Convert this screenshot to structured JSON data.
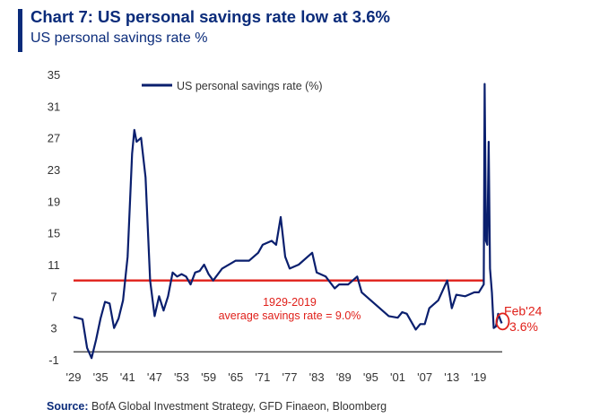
{
  "title": "Chart 7: US personal savings rate low at 3.6%",
  "subtitle": "US personal savings rate %",
  "source_label": "Source:",
  "source_text": "BofA Global Investment Strategy, GFD Finaeon, Bloomberg",
  "chart_data": {
    "type": "line",
    "title": "Chart 7: US personal savings rate low at 3.6%",
    "ylabel": "US personal savings rate %",
    "ylim": [
      -1,
      35
    ],
    "xlim": [
      1929,
      2024.2
    ],
    "y_ticks": [
      "35",
      "31",
      "27",
      "23",
      "19",
      "15",
      "11",
      "7",
      "3",
      "-1"
    ],
    "x_ticks": [
      "'29",
      "'35",
      "'41",
      "'47",
      "'53",
      "'59",
      "'65",
      "'71",
      "'77",
      "'83",
      "'89",
      "'95",
      "'01",
      "'07",
      "'13",
      "'19"
    ],
    "legend": {
      "position": "top-left",
      "entries": [
        "US personal savings rate (%)"
      ]
    },
    "grid": false,
    "colors": {
      "series": "#0a1f6e",
      "average": "#e0201a",
      "zero": "#1a1a1a"
    },
    "series": [
      {
        "name": "US personal savings rate (%)",
        "points": [
          [
            1929,
            4.4
          ],
          [
            1931,
            4.1
          ],
          [
            1932,
            0.5
          ],
          [
            1933,
            -0.8
          ],
          [
            1934,
            1.5
          ],
          [
            1935,
            4.2
          ],
          [
            1936,
            6.3
          ],
          [
            1937,
            6.1
          ],
          [
            1938,
            3.0
          ],
          [
            1939,
            4.2
          ],
          [
            1940,
            6.5
          ],
          [
            1941,
            12.0
          ],
          [
            1942,
            25.0
          ],
          [
            1942.5,
            28.0
          ],
          [
            1943,
            26.5
          ],
          [
            1944,
            27.0
          ],
          [
            1945,
            22.0
          ],
          [
            1946,
            9.0
          ],
          [
            1947,
            4.5
          ],
          [
            1948,
            7.0
          ],
          [
            1949,
            5.2
          ],
          [
            1950,
            7.0
          ],
          [
            1951,
            10.0
          ],
          [
            1952,
            9.5
          ],
          [
            1953,
            9.8
          ],
          [
            1954,
            9.5
          ],
          [
            1955,
            8.5
          ],
          [
            1956,
            10.0
          ],
          [
            1957,
            10.2
          ],
          [
            1958,
            11.0
          ],
          [
            1959,
            9.8
          ],
          [
            1960,
            9.0
          ],
          [
            1962,
            10.5
          ],
          [
            1965,
            11.5
          ],
          [
            1968,
            11.5
          ],
          [
            1970,
            12.5
          ],
          [
            1971,
            13.5
          ],
          [
            1973,
            14.0
          ],
          [
            1974,
            13.5
          ],
          [
            1975,
            17.0
          ],
          [
            1976,
            12.0
          ],
          [
            1977,
            10.5
          ],
          [
            1979,
            11.0
          ],
          [
            1981,
            12.0
          ],
          [
            1982,
            12.5
          ],
          [
            1983,
            10.0
          ],
          [
            1985,
            9.5
          ],
          [
            1987,
            8.0
          ],
          [
            1988,
            8.5
          ],
          [
            1989,
            8.5
          ],
          [
            1990,
            8.5
          ],
          [
            1992,
            9.5
          ],
          [
            1993,
            7.5
          ],
          [
            1995,
            6.5
          ],
          [
            1997,
            5.5
          ],
          [
            1999,
            4.5
          ],
          [
            2001,
            4.3
          ],
          [
            2002,
            5.0
          ],
          [
            2003,
            4.8
          ],
          [
            2005,
            2.8
          ],
          [
            2006,
            3.5
          ],
          [
            2007,
            3.5
          ],
          [
            2008,
            5.5
          ],
          [
            2009,
            6.0
          ],
          [
            2010,
            6.5
          ],
          [
            2012,
            9.0
          ],
          [
            2013,
            5.5
          ],
          [
            2014,
            7.2
          ],
          [
            2016,
            7.0
          ],
          [
            2018,
            7.5
          ],
          [
            2019,
            7.5
          ],
          [
            2020.1,
            8.5
          ],
          [
            2020.3,
            33.8
          ],
          [
            2020.6,
            14.0
          ],
          [
            2020.9,
            13.5
          ],
          [
            2021.2,
            26.5
          ],
          [
            2021.5,
            10.5
          ],
          [
            2021.9,
            7.5
          ],
          [
            2022.3,
            3.0
          ],
          [
            2022.8,
            3.2
          ],
          [
            2023.3,
            4.8
          ],
          [
            2023.8,
            4.0
          ],
          [
            2024.1,
            3.6
          ]
        ]
      },
      {
        "name": "1929-2019 average savings rate",
        "type": "hline",
        "y": 9.0,
        "x_range": [
          1929,
          2020.3
        ]
      }
    ],
    "annotations": [
      {
        "text": "1929-2019",
        "anchor": [
          1977,
          5.8
        ]
      },
      {
        "text": "average savings rate = 9.0%",
        "anchor": [
          1977,
          4.1
        ]
      },
      {
        "text": "Feb'24",
        "anchor": [
          2025,
          4.6
        ]
      },
      {
        "text": "3.6%",
        "anchor": [
          2025,
          2.6
        ],
        "highlight": [
          2024.1,
          3.6
        ]
      }
    ]
  }
}
